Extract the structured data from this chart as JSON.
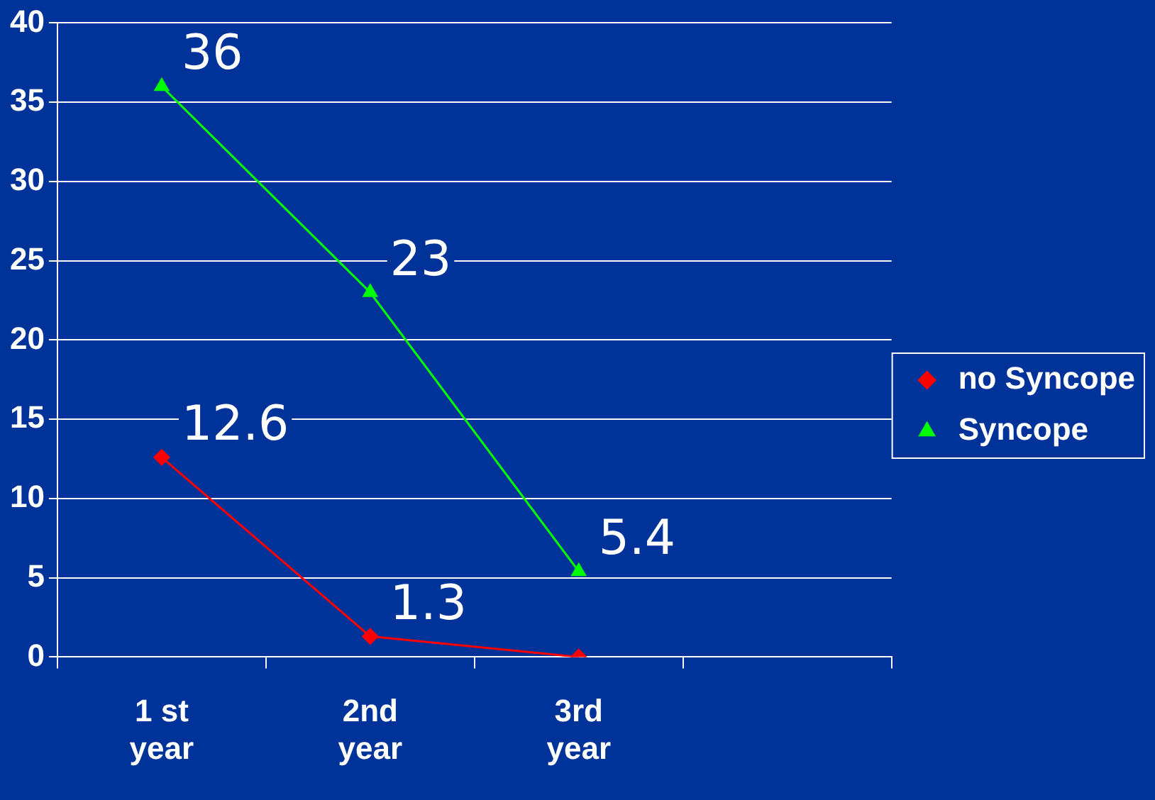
{
  "chart_data": {
    "type": "line",
    "categories": [
      "1 st year",
      "2nd year",
      "3rd year",
      null
    ],
    "series": [
      {
        "name": "no Syncope",
        "color": "#ff0000",
        "marker": "diamond",
        "values": [
          12.6,
          1.3,
          0,
          null
        ],
        "value_labels": [
          "12.6",
          "1.3",
          null,
          null
        ]
      },
      {
        "name": "Syncope",
        "color": "#00ff00",
        "marker": "triangle",
        "values": [
          36,
          23,
          5.4,
          null
        ],
        "value_labels": [
          "36",
          "23",
          "5.4",
          null
        ]
      }
    ],
    "ylim": [
      0,
      40
    ],
    "yticks": [
      0,
      5,
      10,
      15,
      20,
      25,
      30,
      35,
      40
    ],
    "grid": "y",
    "legend": "right"
  }
}
